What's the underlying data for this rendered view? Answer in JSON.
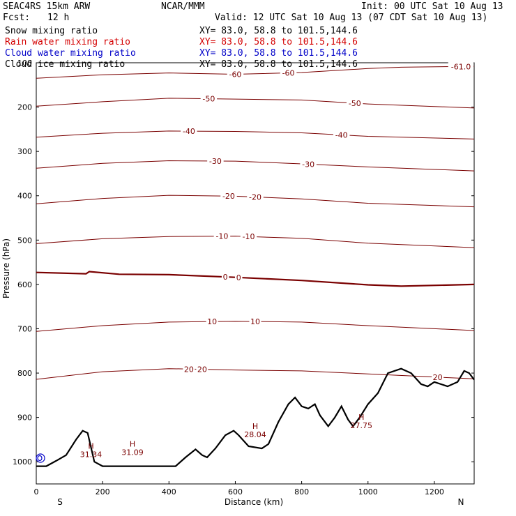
{
  "header": {
    "model": "SEAC4RS 15km ARW",
    "center": "NCAR/MMM",
    "init": "Init: 00 UTC Sat 10 Aug 13",
    "fcst_label": "Fcst:",
    "fcst_value": "12 h",
    "valid": "Valid: 12 UTC Sat 10 Aug 13 (07 CDT Sat 10 Aug 13)"
  },
  "legend_rows": [
    {
      "label": "Snow mixing ratio",
      "xy": "XY=  83.0, 58.8 to 101.5,144.6",
      "color": "#000000"
    },
    {
      "label": "Rain water mixing ratio",
      "xy": "XY=  83.0, 58.8 to 101.5,144.6",
      "color": "#d40000"
    },
    {
      "label": "Cloud water mixing ratio",
      "xy": "XY=  83.0, 58.8 to 101.5,144.6",
      "color": "#0000c8"
    },
    {
      "label": "Cloud ice mixing ratio",
      "xy": "XY=  83.0, 58.8 to 101.5,144.6",
      "color": "#000000"
    }
  ],
  "chart_data": {
    "type": "line",
    "xlabel": "Distance (km)",
    "ylabel": "Pressure (hPa)",
    "xlim": [
      0,
      1320
    ],
    "ylim": [
      1050,
      100
    ],
    "x_ticks": [
      0,
      200,
      400,
      600,
      800,
      1000,
      1200
    ],
    "y_ticks": [
      100,
      200,
      300,
      400,
      500,
      600,
      700,
      800,
      900,
      1000
    ],
    "end_labels": {
      "left": "S",
      "right": "N"
    },
    "isotherm_color": "#7a0000",
    "terrain_color": "#000000",
    "isotherms": [
      {
        "value": -60,
        "labels": [
          "-60",
          "-60",
          "-61.0"
        ],
        "label_x": [
          600,
          760,
          1280
        ],
        "points": [
          [
            0,
            135
          ],
          [
            200,
            127
          ],
          [
            400,
            123
          ],
          [
            600,
            126
          ],
          [
            800,
            122
          ],
          [
            1000,
            113
          ],
          [
            1100,
            110
          ],
          [
            1320,
            108
          ]
        ]
      },
      {
        "value": -50,
        "labels": [
          "-50",
          "-50"
        ],
        "label_x": [
          520,
          960
        ],
        "points": [
          [
            0,
            198
          ],
          [
            200,
            188
          ],
          [
            400,
            180
          ],
          [
            600,
            182
          ],
          [
            800,
            184
          ],
          [
            1000,
            193
          ],
          [
            1320,
            202
          ]
        ]
      },
      {
        "value": -40,
        "labels": [
          "-40",
          "-40"
        ],
        "label_x": [
          460,
          920
        ],
        "points": [
          [
            0,
            268
          ],
          [
            200,
            259
          ],
          [
            400,
            254
          ],
          [
            600,
            255
          ],
          [
            800,
            258
          ],
          [
            1000,
            266
          ],
          [
            1320,
            272
          ]
        ]
      },
      {
        "value": -30,
        "labels": [
          "-30",
          "-30"
        ],
        "label_x": [
          540,
          820
        ],
        "points": [
          [
            0,
            338
          ],
          [
            200,
            327
          ],
          [
            400,
            321
          ],
          [
            600,
            322
          ],
          [
            800,
            328
          ],
          [
            1000,
            335
          ],
          [
            1320,
            344
          ]
        ]
      },
      {
        "value": -20,
        "labels": [
          "-20",
          "-20"
        ],
        "label_x": [
          580,
          660
        ],
        "points": [
          [
            0,
            418
          ],
          [
            200,
            406
          ],
          [
            400,
            399
          ],
          [
            600,
            401
          ],
          [
            800,
            407
          ],
          [
            1000,
            417
          ],
          [
            1320,
            425
          ]
        ]
      },
      {
        "value": -10,
        "labels": [
          "-10",
          "-10"
        ],
        "label_x": [
          560,
          640
        ],
        "points": [
          [
            0,
            508
          ],
          [
            200,
            497
          ],
          [
            400,
            492
          ],
          [
            600,
            491
          ],
          [
            800,
            496
          ],
          [
            1000,
            507
          ],
          [
            1320,
            517
          ]
        ]
      },
      {
        "value": 0,
        "labels": [
          "0",
          "0"
        ],
        "label_x": [
          570,
          610
        ],
        "bold": true,
        "points": [
          [
            0,
            573
          ],
          [
            150,
            576
          ],
          [
            160,
            571
          ],
          [
            250,
            577
          ],
          [
            400,
            578
          ],
          [
            600,
            584
          ],
          [
            800,
            591
          ],
          [
            1000,
            601
          ],
          [
            1100,
            604
          ],
          [
            1320,
            600
          ]
        ]
      },
      {
        "value": 10,
        "labels": [
          "10",
          "10"
        ],
        "label_x": [
          530,
          660
        ],
        "points": [
          [
            0,
            706
          ],
          [
            200,
            693
          ],
          [
            400,
            685
          ],
          [
            600,
            683
          ],
          [
            800,
            685
          ],
          [
            1000,
            693
          ],
          [
            1320,
            704
          ]
        ]
      },
      {
        "value": 20,
        "labels": [
          "20",
          "20",
          "20"
        ],
        "label_x": [
          460,
          500,
          1210
        ],
        "points": [
          [
            0,
            814
          ],
          [
            200,
            797
          ],
          [
            400,
            790
          ],
          [
            600,
            793
          ],
          [
            800,
            795
          ],
          [
            1000,
            802
          ],
          [
            1320,
            813
          ]
        ]
      }
    ],
    "terrain": [
      [
        0,
        1010
      ],
      [
        30,
        1010
      ],
      [
        60,
        998
      ],
      [
        90,
        985
      ],
      [
        120,
        950
      ],
      [
        140,
        930
      ],
      [
        155,
        935
      ],
      [
        175,
        1000
      ],
      [
        200,
        1010
      ],
      [
        250,
        1010
      ],
      [
        420,
        1010
      ],
      [
        450,
        990
      ],
      [
        480,
        972
      ],
      [
        500,
        985
      ],
      [
        515,
        990
      ],
      [
        540,
        970
      ],
      [
        570,
        940
      ],
      [
        595,
        930
      ],
      [
        610,
        940
      ],
      [
        640,
        965
      ],
      [
        680,
        970
      ],
      [
        700,
        960
      ],
      [
        730,
        910
      ],
      [
        760,
        870
      ],
      [
        780,
        855
      ],
      [
        800,
        875
      ],
      [
        820,
        880
      ],
      [
        840,
        870
      ],
      [
        855,
        895
      ],
      [
        880,
        920
      ],
      [
        900,
        900
      ],
      [
        920,
        875
      ],
      [
        940,
        905
      ],
      [
        955,
        920
      ],
      [
        975,
        900
      ],
      [
        1000,
        870
      ],
      [
        1030,
        845
      ],
      [
        1060,
        800
      ],
      [
        1100,
        790
      ],
      [
        1130,
        800
      ],
      [
        1160,
        825
      ],
      [
        1180,
        830
      ],
      [
        1200,
        820
      ],
      [
        1240,
        830
      ],
      [
        1270,
        820
      ],
      [
        1290,
        795
      ],
      [
        1305,
        800
      ],
      [
        1320,
        815
      ]
    ],
    "highs": [
      {
        "label": "H",
        "value": "31.34",
        "x": 165,
        "p": 980
      },
      {
        "label": "H",
        "value": "31.09",
        "x": 290,
        "p": 975
      },
      {
        "label": "H",
        "value": "28.04",
        "x": 660,
        "p": 935
      },
      {
        "label": "H",
        "value": "27.75",
        "x": 980,
        "p": 915
      }
    ]
  }
}
